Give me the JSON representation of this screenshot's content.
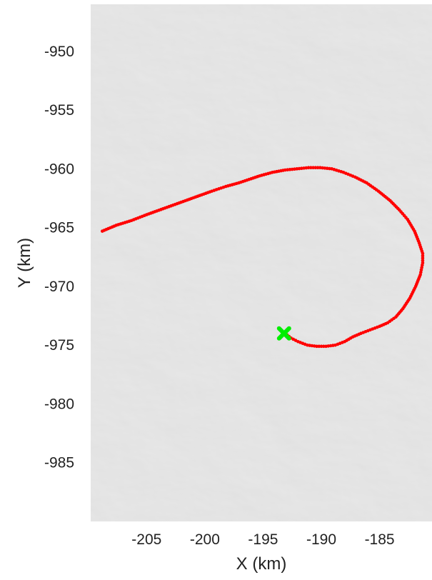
{
  "chart_data": {
    "type": "scatter",
    "xlabel": "X (km)",
    "ylabel": "Y (km)",
    "xlim": [
      -209.8,
      -180.5
    ],
    "ylim": [
      -990,
      -946
    ],
    "xticks": [
      -205,
      -200,
      -195,
      -190,
      -185
    ],
    "yticks": [
      -950,
      -955,
      -960,
      -965,
      -970,
      -975,
      -980,
      -985
    ],
    "grid": false,
    "background": "shaded-relief terrain (grey)",
    "colors": {
      "track": "#ff0000",
      "start_marker": "#00ee00",
      "terrain_base": "#d6d6d6"
    },
    "series": [
      {
        "marker": "dot",
        "color": "#ff0000",
        "points": [
          [
            -193.1,
            -974.0
          ],
          [
            -192.6,
            -974.4
          ],
          [
            -192.0,
            -974.7
          ],
          [
            -191.2,
            -975.0
          ],
          [
            -190.4,
            -975.1
          ],
          [
            -189.6,
            -975.1
          ],
          [
            -188.8,
            -975.0
          ],
          [
            -188.0,
            -974.7
          ],
          [
            -187.3,
            -974.3
          ],
          [
            -186.6,
            -974.0
          ],
          [
            -185.8,
            -973.7
          ],
          [
            -185.0,
            -973.4
          ],
          [
            -184.3,
            -973.1
          ],
          [
            -183.6,
            -972.6
          ],
          [
            -183.0,
            -971.9
          ],
          [
            -182.4,
            -971.0
          ],
          [
            -181.9,
            -970.0
          ],
          [
            -181.5,
            -969.0
          ],
          [
            -181.3,
            -968.0
          ],
          [
            -181.3,
            -967.2
          ],
          [
            -181.6,
            -966.3
          ],
          [
            -182.0,
            -965.3
          ],
          [
            -182.6,
            -964.3
          ],
          [
            -183.3,
            -963.5
          ],
          [
            -184.1,
            -962.7
          ],
          [
            -185.1,
            -961.9
          ],
          [
            -186.1,
            -961.2
          ],
          [
            -187.1,
            -960.7
          ],
          [
            -188.1,
            -960.3
          ],
          [
            -189.1,
            -960.0
          ],
          [
            -190.1,
            -959.9
          ],
          [
            -191.1,
            -959.9
          ],
          [
            -192.1,
            -960.0
          ],
          [
            -193.1,
            -960.1
          ],
          [
            -194.2,
            -960.3
          ],
          [
            -195.3,
            -960.6
          ],
          [
            -196.2,
            -960.9
          ],
          [
            -197.1,
            -961.2
          ],
          [
            -198.2,
            -961.5
          ],
          [
            -199.4,
            -961.9
          ],
          [
            -200.8,
            -962.4
          ],
          [
            -202.2,
            -962.9
          ],
          [
            -203.6,
            -963.4
          ],
          [
            -205.0,
            -963.9
          ],
          [
            -206.3,
            -964.4
          ],
          [
            -207.6,
            -964.8
          ],
          [
            -208.8,
            -965.3
          ]
        ]
      },
      {
        "marker": "x",
        "color": "#00ee00",
        "points": [
          [
            -193.2,
            -974.0
          ]
        ]
      }
    ]
  }
}
